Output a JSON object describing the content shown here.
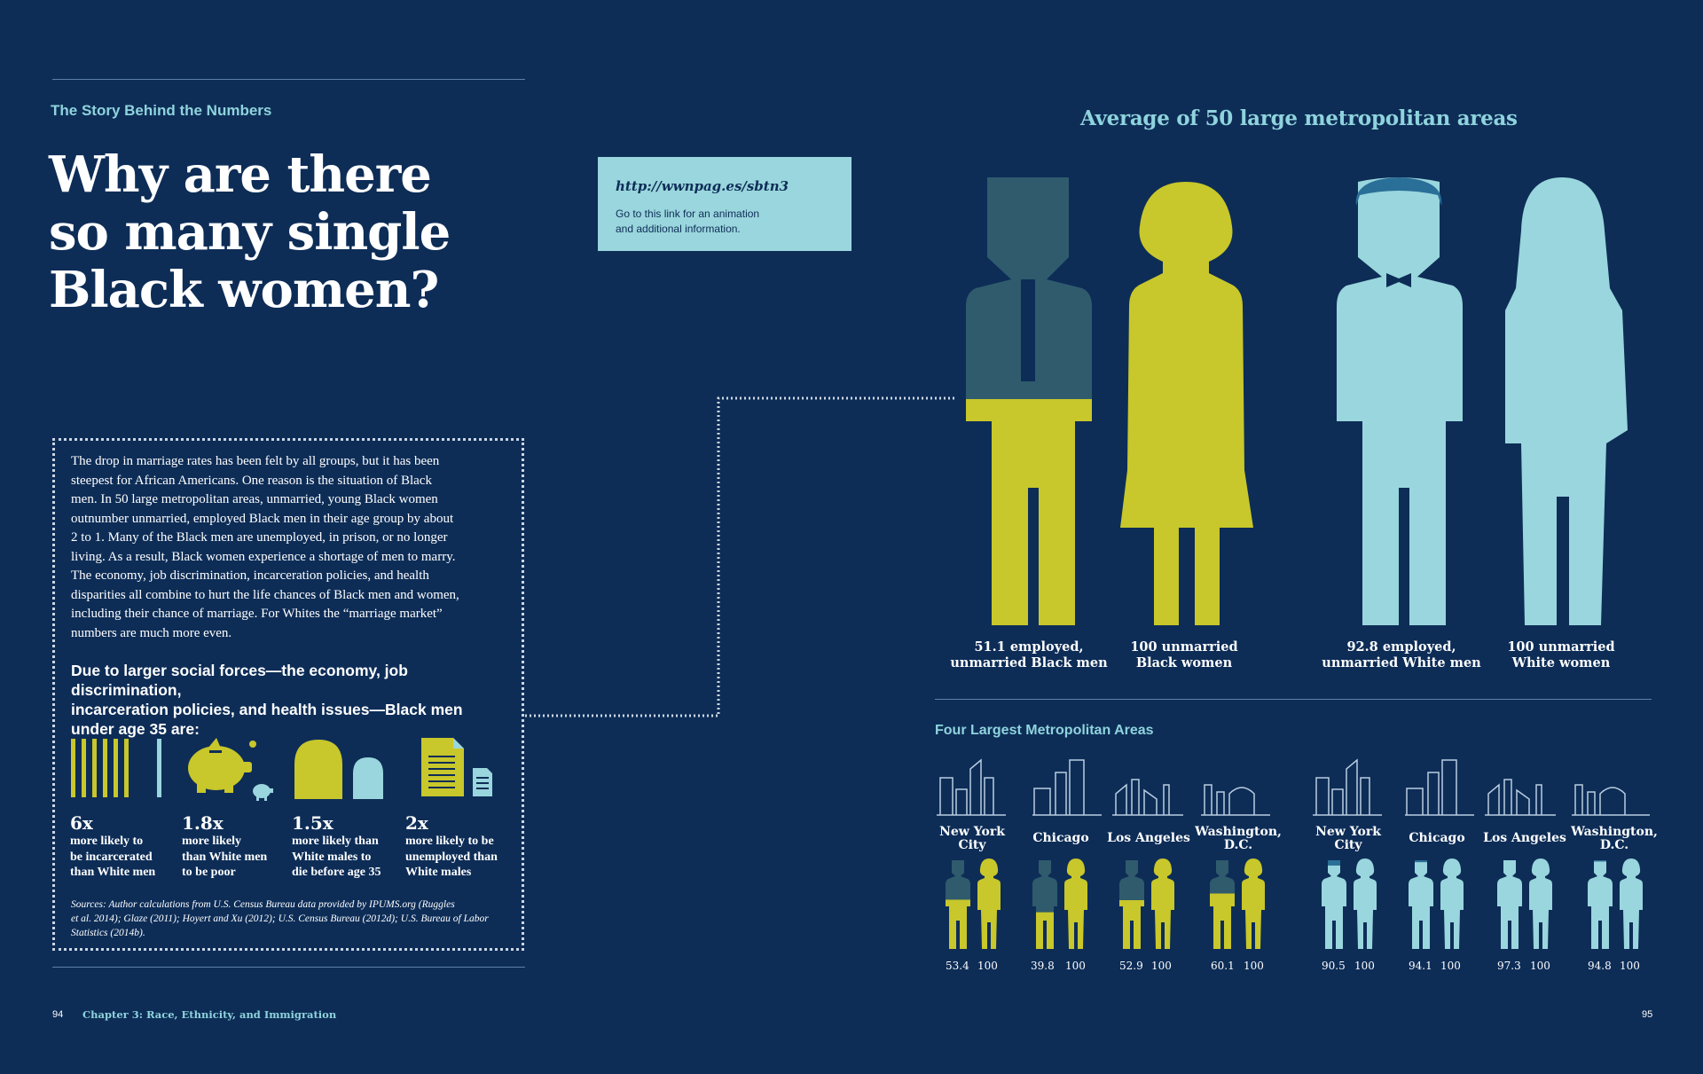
{
  "header": {
    "eyebrow": "The Story Behind the Numbers"
  },
  "title": {
    "line1": "Why are there",
    "line2": "so many single",
    "line3": "Black women?"
  },
  "link_box": {
    "url": "http://wwnpag.es/sbtn3",
    "note_line1": "Go to this link for an animation",
    "note_line2": "and additional information."
  },
  "body_lines": [
    "The drop in marriage rates has been felt by all groups, but it has been",
    "steepest for African Americans. One reason is the situation of Black",
    "men. In 50 large metropolitan areas, unmarried, young Black women",
    "outnumber unmarried, employed Black men in their age group by about",
    "2 to 1. Many of the Black men are unemployed, in prison, or no longer",
    "living. As a result, Black women experience a shortage of men to marry.",
    "The economy, job discrimination, incarceration policies, and health",
    "disparities all combine to hurt the life chances of Black men and women,",
    "including their chance of marriage. For Whites the “marriage market”",
    "numbers are much more even."
  ],
  "lead_lines": [
    "Due to larger social forces—the economy, job discrimination,",
    "incarceration policies, and health issues—Black men",
    "under age 35 are:"
  ],
  "stats": [
    {
      "number": "6x",
      "lines": [
        "more likely to",
        "be incarcerated",
        "than White men"
      ],
      "icon": "prison-bars-icon"
    },
    {
      "number": "1.8x",
      "lines": [
        "more likely",
        "than White men",
        "to be poor"
      ],
      "icon": "piggy-bank-icon"
    },
    {
      "number": "1.5x",
      "lines": [
        "more likely than",
        "White males to",
        "die before age 35"
      ],
      "icon": "tombstone-icon"
    },
    {
      "number": "2x",
      "lines": [
        "more likely to be",
        "unemployed than",
        "White males"
      ],
      "icon": "document-icon"
    }
  ],
  "sources": {
    "line1": "Sources: Author calculations from U.S. Census Bureau data provided by IPUMS.org (Ruggles",
    "line2": "et al. 2014); Glaze (2011); Hoyert and Xu (2012); U.S. Census Bureau (2012d); U.S. Bureau of Labor",
    "line3": "Statistics (2014b)."
  },
  "footer": {
    "left_page": "94",
    "chapter": "Chapter 3: Race, Ethnicity, and Immigration",
    "right_page": "95"
  },
  "average": {
    "title": "Average of 50 large metropolitan areas",
    "figures": [
      {
        "line1": "51.1 employed,",
        "line2": "unmarried Black men",
        "value": 51.1
      },
      {
        "line1": "100 unmarried",
        "line2": "Black women",
        "value": 100
      },
      {
        "line1": "92.8 employed,",
        "line2": "unmarried White men",
        "value": 92.8
      },
      {
        "line1": "100 unmarried",
        "line2": "White women",
        "value": 100
      }
    ]
  },
  "four_largest": {
    "title": "Four Largest Metropolitan Areas",
    "black": [
      {
        "city_line1": "New York",
        "city_line2": "City",
        "men": "53.4",
        "women": "100"
      },
      {
        "city_line1": "Chicago",
        "city_line2": "",
        "men": "39.8",
        "women": "100"
      },
      {
        "city_line1": "Los Angeles",
        "city_line2": "",
        "men": "52.9",
        "women": "100"
      },
      {
        "city_line1": "Washington,",
        "city_line2": "D.C.",
        "men": "60.1",
        "women": "100"
      }
    ],
    "white": [
      {
        "city_line1": "New York",
        "city_line2": "City",
        "men": "90.5",
        "women": "100"
      },
      {
        "city_line1": "Chicago",
        "city_line2": "",
        "men": "94.1",
        "women": "100"
      },
      {
        "city_line1": "Los Angeles",
        "city_line2": "",
        "men": "97.3",
        "women": "100"
      },
      {
        "city_line1": "Washington,",
        "city_line2": "D.C.",
        "men": "94.8",
        "women": "100"
      }
    ]
  },
  "colors": {
    "background": "#0d2d57",
    "lime": "#c8c72b",
    "teal": "#9ad6dd",
    "slate": "#2f5b6d",
    "accent_text": "#8fd3dc"
  }
}
